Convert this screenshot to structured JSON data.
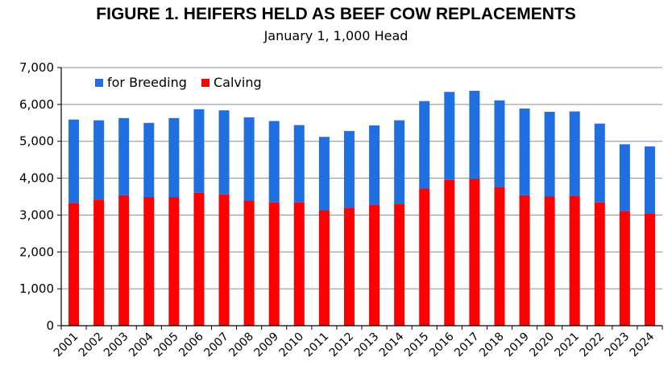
{
  "chart_data": {
    "type": "bar",
    "stacked": true,
    "title": "FIGURE 1. HEIFERS HELD AS BEEF COW REPLACEMENTS",
    "subtitle": "January 1, 1,000 Head",
    "xlabel": "",
    "ylabel": "",
    "ylim": [
      0,
      7000
    ],
    "yticks": [
      0,
      1000,
      2000,
      3000,
      4000,
      5000,
      6000,
      7000
    ],
    "ytick_labels": [
      "0",
      "1,000",
      "2,000",
      "3,000",
      "4,000",
      "5,000",
      "6,000",
      "7,000"
    ],
    "grid": true,
    "legend_position": "top-left",
    "categories": [
      "2001",
      "2002",
      "2003",
      "2004",
      "2005",
      "2006",
      "2007",
      "2008",
      "2009",
      "2010",
      "2011",
      "2012",
      "2013",
      "2014",
      "2015",
      "2016",
      "2017",
      "2018",
      "2019",
      "2020",
      "2021",
      "2022",
      "2023",
      "2024"
    ],
    "series": [
      {
        "name": "Calving",
        "color": "#ff0000",
        "values": [
          3330,
          3420,
          3540,
          3490,
          3490,
          3600,
          3560,
          3400,
          3340,
          3340,
          3130,
          3200,
          3280,
          3310,
          3720,
          3950,
          3980,
          3760,
          3540,
          3500,
          3520,
          3340,
          3110,
          3050
        ]
      },
      {
        "name": "for Breeding",
        "color": "#1f6fe0",
        "values": [
          2260,
          2150,
          2090,
          2010,
          2140,
          2270,
          2280,
          2250,
          2210,
          2100,
          1990,
          2080,
          2150,
          2260,
          2370,
          2390,
          2390,
          2350,
          2350,
          2300,
          2290,
          2140,
          1810,
          1810
        ]
      }
    ]
  }
}
